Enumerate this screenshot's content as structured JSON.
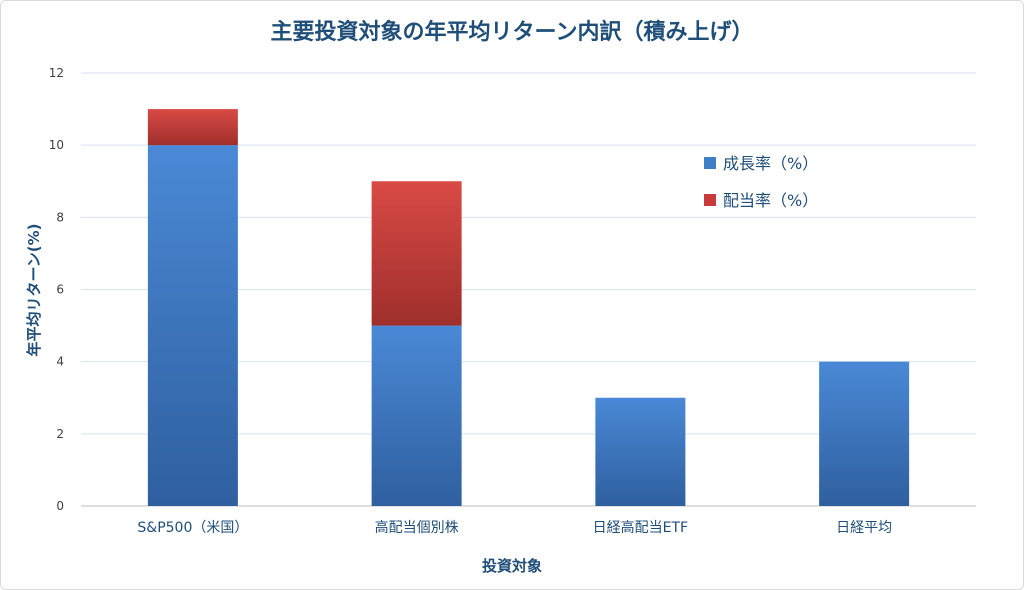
{
  "chart_data": {
    "type": "bar",
    "stacked": true,
    "title": "主要投資対象の年平均リターン内訳（積み上げ）",
    "xlabel": "投資対象",
    "ylabel": "年平均リターン(%)",
    "categories": [
      "S&P500（米国）",
      "高配当個別株",
      "日経高配当ETF",
      "日経平均"
    ],
    "series": [
      {
        "name": "成長率（%）",
        "values": [
          10,
          5,
          3,
          4
        ],
        "color": "#3f7dc7"
      },
      {
        "name": "配当率（%）",
        "values": [
          1,
          4,
          0,
          0
        ],
        "color": "#c93a3a"
      }
    ],
    "ylim": [
      0,
      12
    ],
    "yticks": [
      "0",
      "2",
      "4",
      "6",
      "8",
      "10",
      "12"
    ],
    "grid": true,
    "legend_position": "right"
  }
}
